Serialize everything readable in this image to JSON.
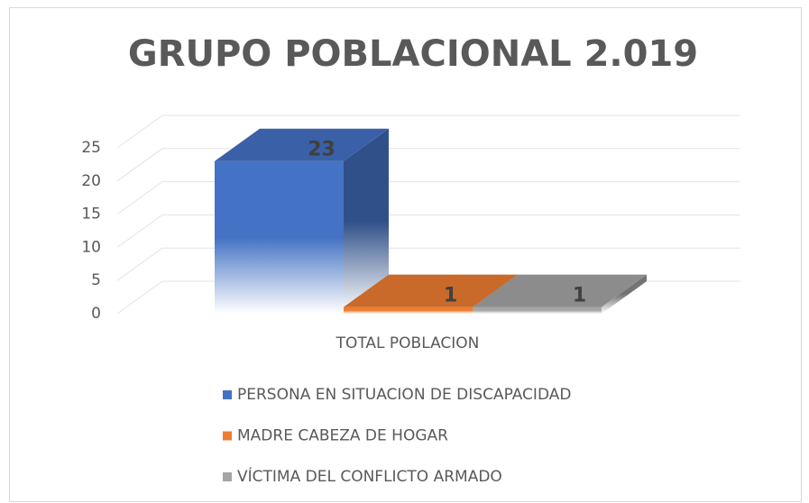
{
  "chart_data": {
    "type": "bar3d",
    "title": "GRUPO POBLACIONAL 2.019",
    "categories": [
      "TOTAL POBLACION"
    ],
    "series": [
      {
        "name": "PERSONA EN SITUACION DE DISCAPACIDAD",
        "color": "#4472c4",
        "values": [
          23
        ]
      },
      {
        "name": "MADRE CABEZA DE HOGAR",
        "color": "#ed7d31",
        "values": [
          1
        ]
      },
      {
        "name": "VÍCTIMA DEL CONFLICTO ARMADO",
        "color": "#a5a5a5",
        "values": [
          1
        ]
      }
    ],
    "ylim": [
      0,
      25
    ],
    "yticks": [
      0,
      5,
      10,
      15,
      20,
      25
    ],
    "grid": true,
    "legend": "bottom"
  }
}
